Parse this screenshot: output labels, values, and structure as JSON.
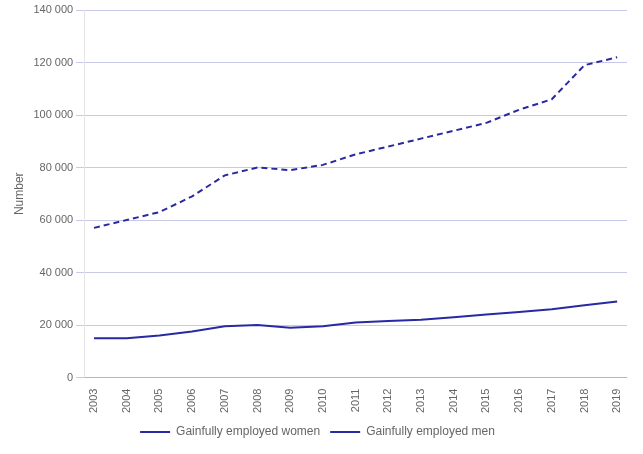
{
  "chart_data": {
    "type": "line",
    "x": [
      2003,
      2004,
      2005,
      2006,
      2007,
      2008,
      2009,
      2010,
      2011,
      2012,
      2013,
      2014,
      2015,
      2016,
      2017,
      2018,
      2019
    ],
    "series": [
      {
        "name": "Gainfully employed women",
        "color": "#2929a3",
        "line_style": "solid",
        "values": [
          15000,
          15000,
          16000,
          17500,
          19500,
          20000,
          19000,
          19500,
          21000,
          21500,
          22000,
          23000,
          24000,
          25000,
          26000,
          27500,
          29000
        ]
      },
      {
        "name": "Gainfully employed men",
        "color": "#2929a3",
        "line_style": "dashed",
        "values": [
          57000,
          60000,
          63000,
          69000,
          77000,
          80000,
          79000,
          81000,
          85000,
          88000,
          91000,
          94000,
          97000,
          102000,
          106000,
          119000,
          122000
        ]
      }
    ],
    "y_label": "Number",
    "xlim": [
      2002.7,
      2019.3
    ],
    "xticks": [
      2003,
      2004,
      2005,
      2006,
      2007,
      2008,
      2009,
      2010,
      2011,
      2012,
      2013,
      2014,
      2015,
      2016,
      2017,
      2018,
      2019
    ],
    "ylim": [
      0,
      140000
    ],
    "yticks": [
      0,
      {
        "value": 20000,
        "label": "20 000"
      },
      {
        "value": 40000,
        "label": "40 000"
      },
      {
        "value": 60000,
        "label": "60 000"
      },
      {
        "value": 80000,
        "label": "80 000"
      },
      {
        "value": 100000,
        "label": "100 000"
      },
      {
        "value": 120000,
        "label": "120 000"
      },
      {
        "value": 140000,
        "label": "140 000"
      }
    ],
    "grid": true,
    "legend": "bottom"
  }
}
